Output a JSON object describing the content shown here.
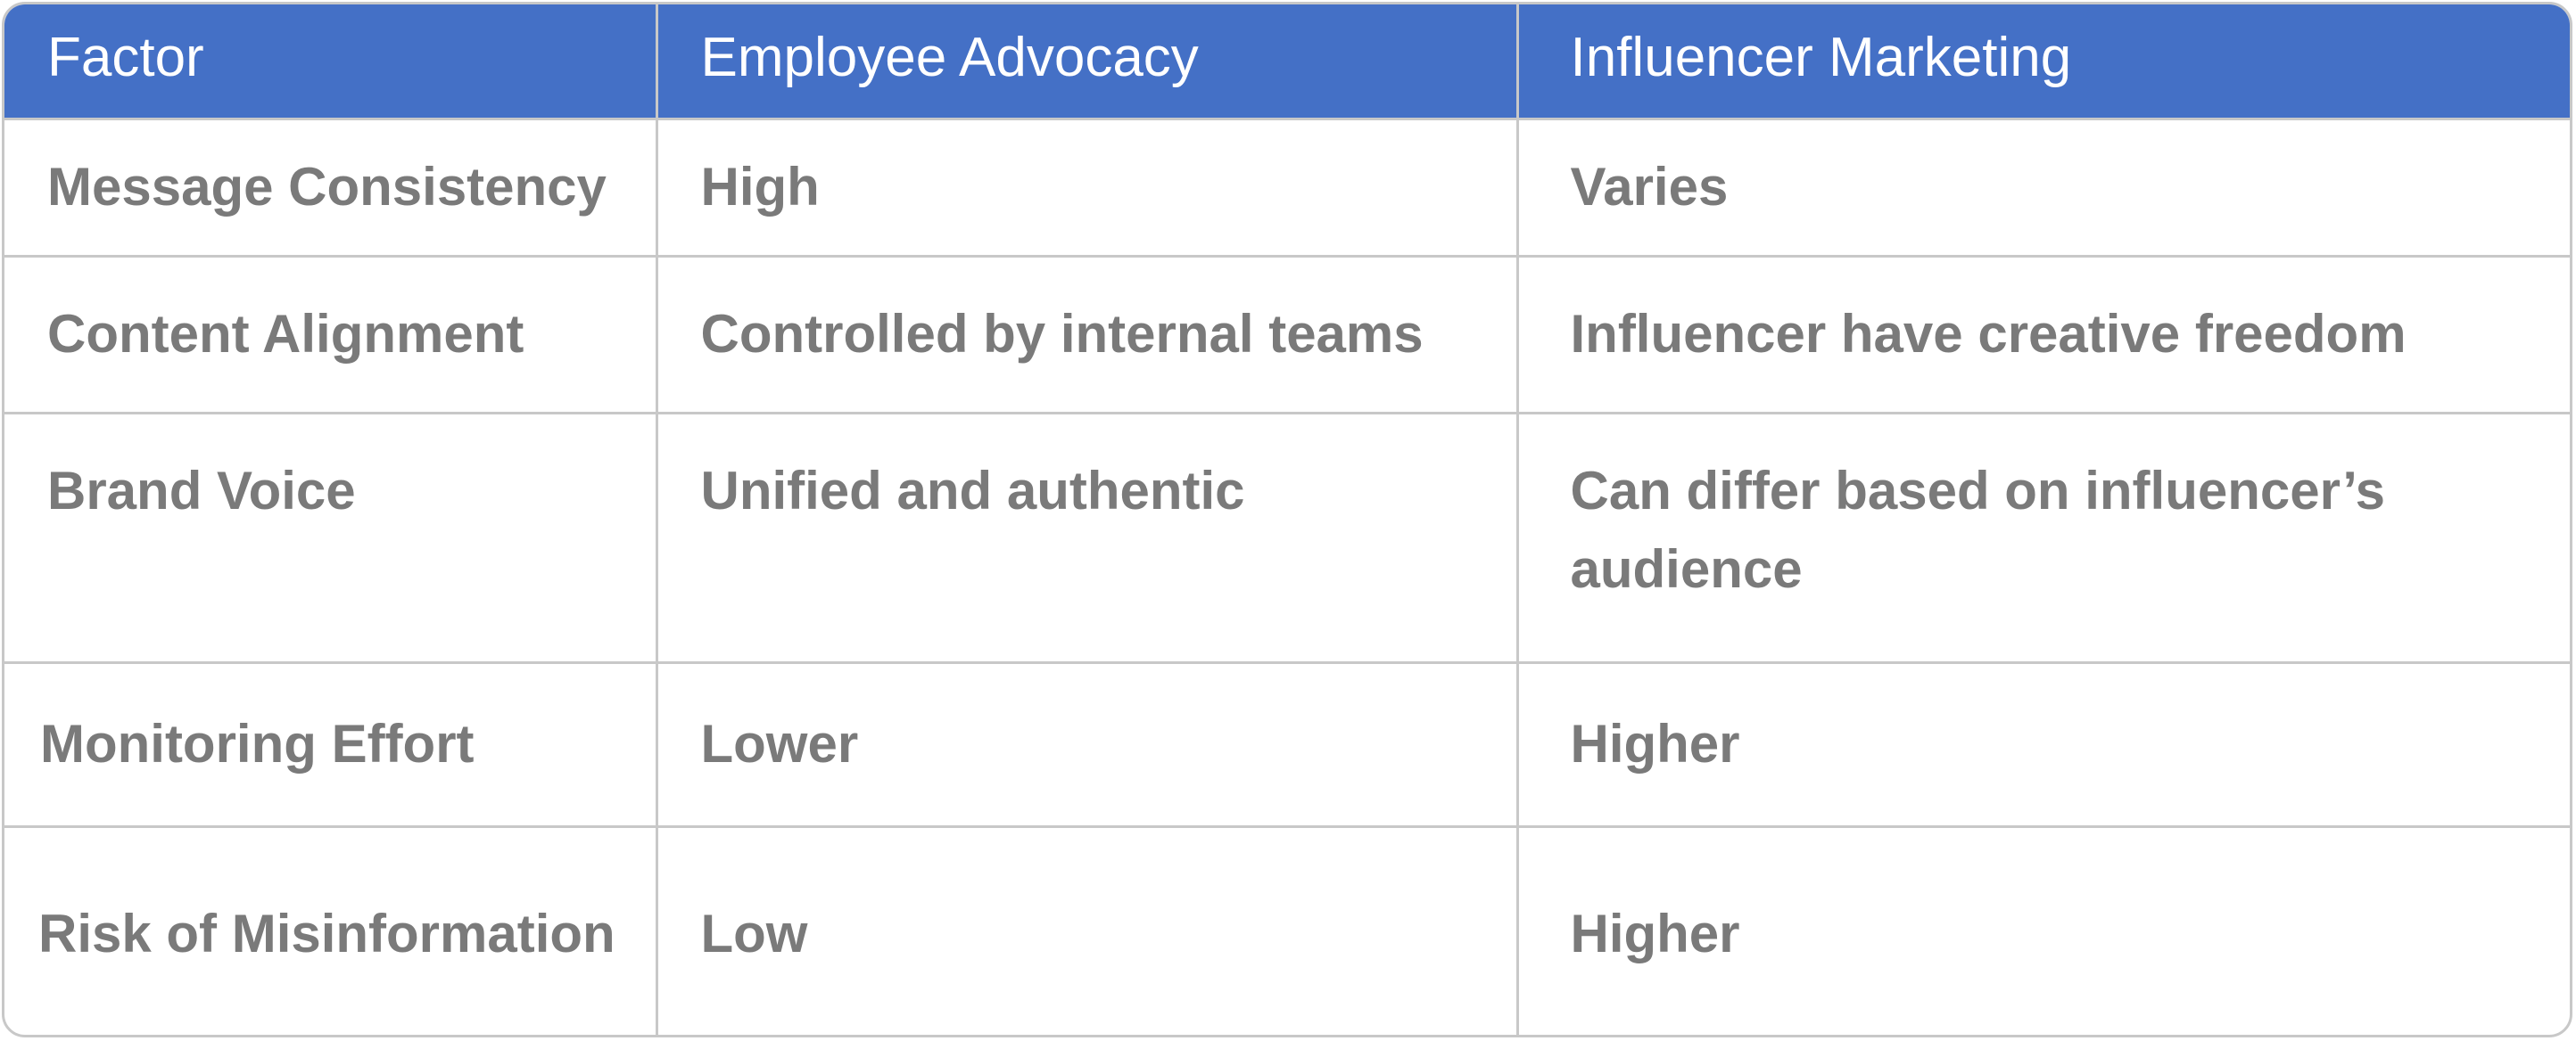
{
  "table": {
    "headers": [
      "Factor",
      "Employee Advocacy",
      "Influencer Marketing"
    ],
    "rows": [
      [
        "Message Consistency",
        "High",
        "Varies"
      ],
      [
        "Content Alignment",
        "Controlled by internal teams",
        "Influencer have creative freedom"
      ],
      [
        "Brand Voice",
        "Unified and authentic",
        "Can differ based on influencer’s audience"
      ],
      [
        "Monitoring Effort",
        "Lower",
        "Higher"
      ],
      [
        "Risk of Misinformation",
        "Low",
        "Higher"
      ]
    ]
  },
  "colors": {
    "header_bg": "#4470c6",
    "header_text": "#ffffff",
    "cell_text": "#7a7a7a",
    "border": "#c8c8c8"
  }
}
